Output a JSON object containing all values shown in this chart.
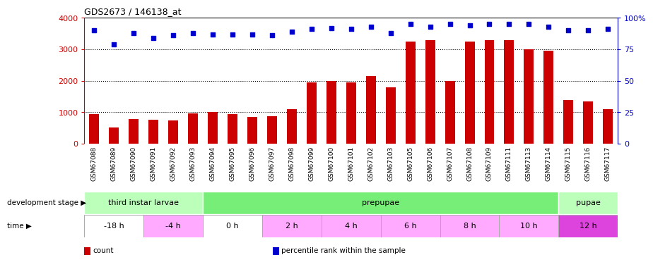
{
  "title": "GDS2673 / 146138_at",
  "samples": [
    "GSM67088",
    "GSM67089",
    "GSM67090",
    "GSM67091",
    "GSM67092",
    "GSM67093",
    "GSM67094",
    "GSM67095",
    "GSM67096",
    "GSM67097",
    "GSM67098",
    "GSM67099",
    "GSM67100",
    "GSM67101",
    "GSM67102",
    "GSM67103",
    "GSM67105",
    "GSM67106",
    "GSM67107",
    "GSM67108",
    "GSM67109",
    "GSM67111",
    "GSM67113",
    "GSM67114",
    "GSM67115",
    "GSM67116",
    "GSM67117"
  ],
  "counts": [
    950,
    520,
    780,
    770,
    730,
    960,
    1000,
    950,
    850,
    870,
    1100,
    1950,
    2000,
    1950,
    2150,
    1800,
    3250,
    3300,
    2000,
    3250,
    3300,
    3300,
    3000,
    2950,
    1380,
    1350,
    1100
  ],
  "percentile": [
    90,
    79,
    88,
    84,
    86,
    88,
    87,
    87,
    87,
    86,
    89,
    91,
    92,
    91,
    93,
    88,
    95,
    93,
    95,
    94,
    95,
    95,
    95,
    93,
    90,
    90,
    91
  ],
  "bar_color": "#cc0000",
  "dot_color": "#0000cc",
  "ylim_left": [
    0,
    4000
  ],
  "ylim_right": [
    0,
    100
  ],
  "yticks_left": [
    0,
    1000,
    2000,
    3000,
    4000
  ],
  "yticks_right": [
    0,
    25,
    50,
    75,
    100
  ],
  "ytick_labels_right": [
    "0",
    "25",
    "50",
    "75",
    "100%"
  ],
  "grid_values": [
    1000,
    2000,
    3000
  ],
  "dev_stages": [
    {
      "name": "third instar larvae",
      "color": "#bbffbb",
      "start": 0,
      "end": 6
    },
    {
      "name": "prepupae",
      "color": "#77ee77",
      "start": 6,
      "end": 24
    },
    {
      "name": "pupae",
      "color": "#bbffbb",
      "start": 24,
      "end": 27
    }
  ],
  "times": [
    {
      "name": "-18 h",
      "color": "#ffffff",
      "start": 0,
      "end": 3
    },
    {
      "name": "-4 h",
      "color": "#ffaaff",
      "start": 3,
      "end": 6
    },
    {
      "name": "0 h",
      "color": "#ffffff",
      "start": 6,
      "end": 9
    },
    {
      "name": "2 h",
      "color": "#ffaaff",
      "start": 9,
      "end": 12
    },
    {
      "name": "4 h",
      "color": "#ffaaff",
      "start": 12,
      "end": 15
    },
    {
      "name": "6 h",
      "color": "#ffaaff",
      "start": 15,
      "end": 18
    },
    {
      "name": "8 h",
      "color": "#ffaaff",
      "start": 18,
      "end": 21
    },
    {
      "name": "10 h",
      "color": "#ffaaff",
      "start": 21,
      "end": 24
    },
    {
      "name": "12 h",
      "color": "#dd44dd",
      "start": 24,
      "end": 27
    }
  ],
  "legend": [
    {
      "color": "#cc0000",
      "label": "count"
    },
    {
      "color": "#0000cc",
      "label": "percentile rank within the sample"
    }
  ],
  "bg_color": "#ffffff",
  "tick_bg_color": "#cccccc"
}
